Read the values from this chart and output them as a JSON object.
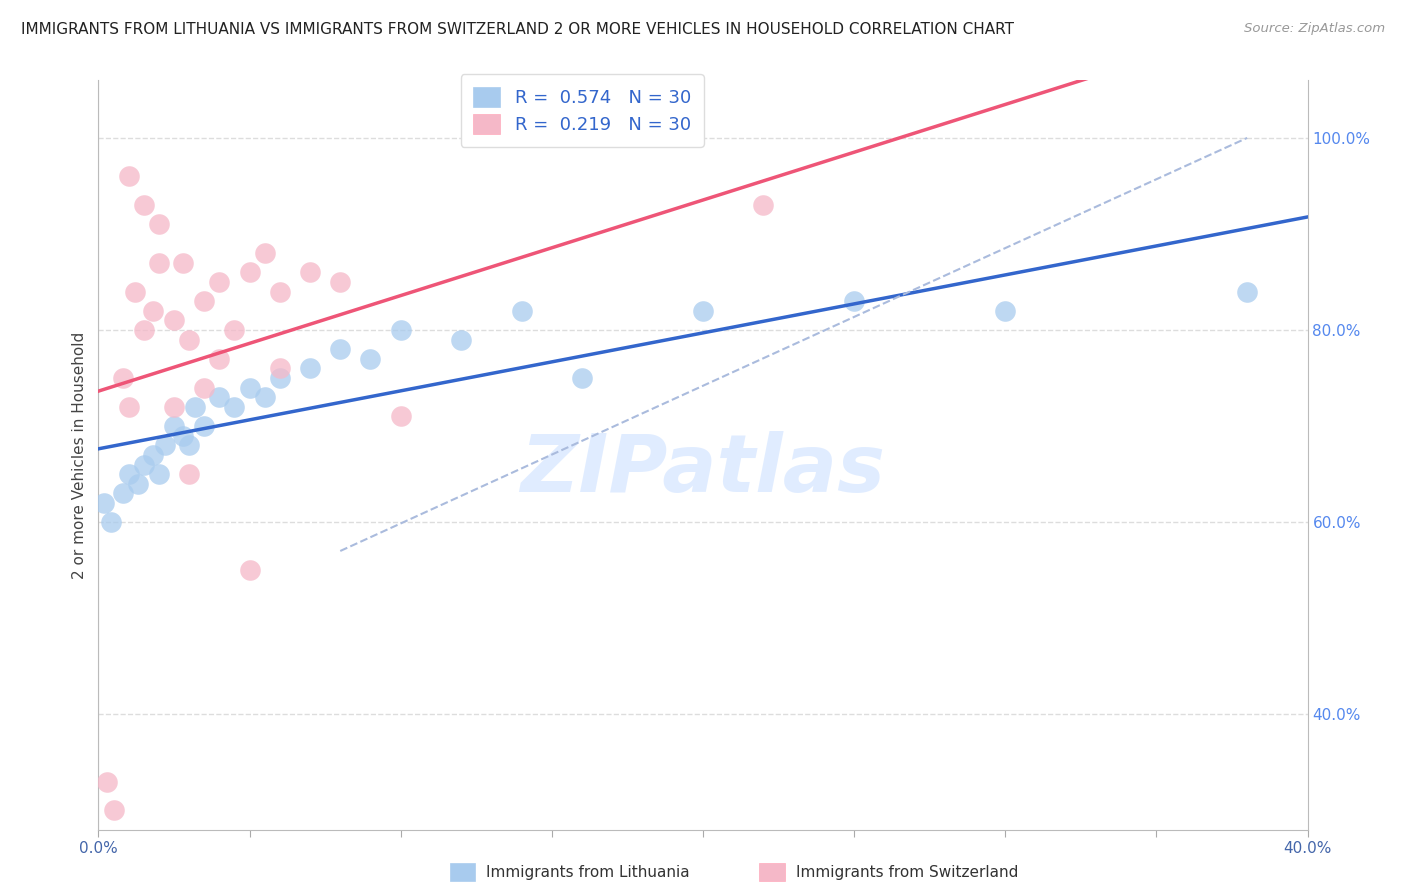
{
  "title": "IMMIGRANTS FROM LITHUANIA VS IMMIGRANTS FROM SWITZERLAND 2 OR MORE VEHICLES IN HOUSEHOLD CORRELATION CHART",
  "source": "Source: ZipAtlas.com",
  "ylabel": "2 or more Vehicles in Household",
  "legend_blue_label": "Immigrants from Lithuania",
  "legend_pink_label": "Immigrants from Switzerland",
  "R_blue": 0.574,
  "N_blue": 30,
  "R_pink": 0.219,
  "N_pink": 30,
  "blue_color": "#A8CBEE",
  "pink_color": "#F5B8C8",
  "blue_line_color": "#3366CC",
  "pink_line_color": "#EE5577",
  "dashed_line_color": "#AABBDD",
  "x_blue": [
    0.2,
    0.4,
    0.8,
    1.0,
    1.3,
    1.5,
    1.8,
    2.0,
    2.2,
    2.5,
    2.8,
    3.0,
    3.2,
    3.5,
    4.0,
    4.5,
    5.0,
    5.5,
    6.0,
    7.0,
    8.0,
    9.0,
    10.0,
    12.0,
    14.0,
    16.0,
    20.0,
    25.0,
    30.0,
    38.0
  ],
  "y_blue": [
    62,
    60,
    63,
    65,
    64,
    66,
    67,
    65,
    68,
    70,
    69,
    68,
    72,
    70,
    73,
    72,
    74,
    73,
    75,
    76,
    78,
    77,
    80,
    79,
    82,
    75,
    82,
    83,
    82,
    84
  ],
  "x_pink": [
    0.3,
    0.5,
    0.8,
    1.0,
    1.2,
    1.5,
    1.8,
    2.0,
    2.5,
    2.8,
    3.0,
    3.5,
    4.0,
    4.5,
    5.0,
    5.5,
    6.0,
    7.0,
    8.0,
    10.0,
    1.0,
    1.5,
    2.0,
    3.0,
    4.0,
    2.5,
    3.5,
    5.0,
    22.0,
    6.0
  ],
  "y_pink": [
    33,
    30,
    75,
    72,
    84,
    80,
    82,
    87,
    81,
    87,
    79,
    83,
    85,
    80,
    86,
    88,
    84,
    86,
    85,
    71,
    96,
    93,
    91,
    65,
    77,
    72,
    74,
    55,
    93,
    76
  ],
  "xlim": [
    0,
    40
  ],
  "ylim": [
    28,
    106
  ],
  "grid_color": "#DDDDDD",
  "background_color": "#FFFFFF",
  "watermark_text": "ZIPatlas",
  "figsize": [
    14.06,
    8.92
  ],
  "dpi": 100,
  "ytick_right_positions": [
    40,
    60,
    80,
    100
  ],
  "yticklabels_right": [
    "40.0%",
    "60.0%",
    "80.0%",
    "100.0%"
  ]
}
